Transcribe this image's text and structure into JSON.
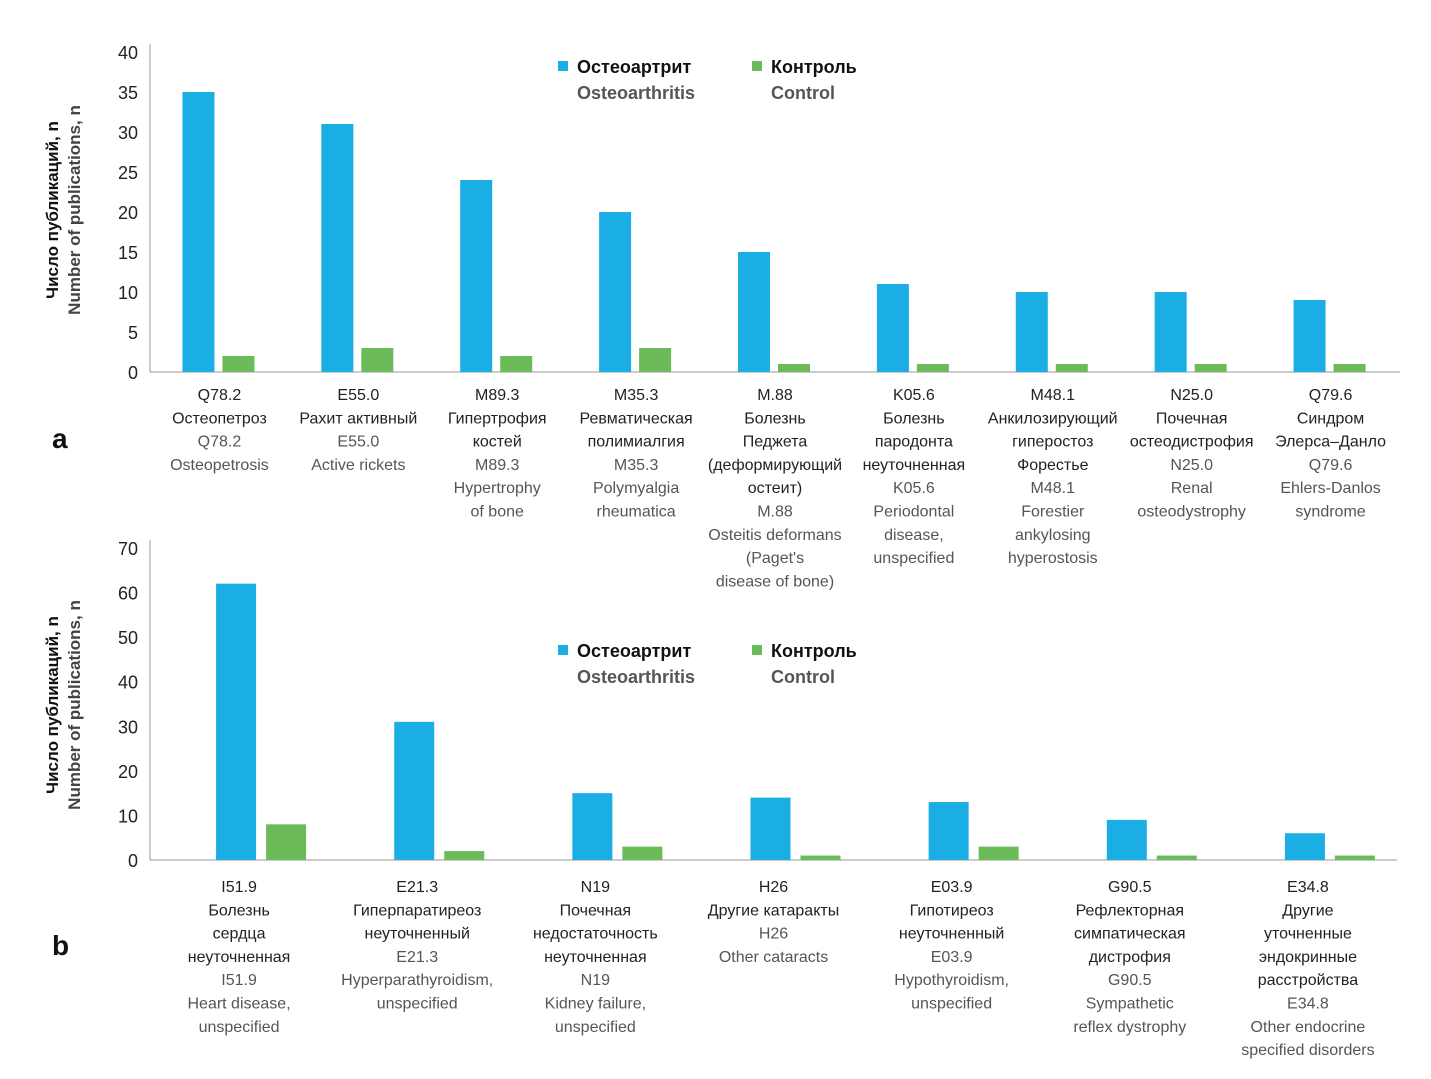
{
  "colors": {
    "osteoarthritis": "#1aaee4",
    "control": "#6cbb5a",
    "axis": "#999999"
  },
  "legend": {
    "osteoarthritis_ru": "Остеоартрит",
    "osteoarthritis_en": "Osteoarthritis",
    "control_ru": "Контроль",
    "control_en": "Control"
  },
  "chart_data": [
    {
      "type": "bar",
      "panel": "a",
      "ylabel_ru": "Число публикаций, n",
      "ylabel_en": "Number of publications, n",
      "ylim": [
        0,
        40
      ],
      "yticks": [
        0,
        5,
        10,
        15,
        20,
        25,
        30,
        35,
        40
      ],
      "legend_position": "top-center",
      "categories": [
        [
          "Q78.2",
          "Остеопетроз",
          "Q78.2",
          "Osteopetrosis"
        ],
        [
          "E55.0",
          "Рахит активный",
          "E55.0",
          "Active rickets"
        ],
        [
          "M89.3",
          "Гипертрофия",
          "костей",
          "M89.3",
          "Hypertrophy",
          "of bone"
        ],
        [
          "M35.3",
          "Ревматическая",
          "полимиалгия",
          "M35.3",
          "Polymyalgia",
          "rheumatica"
        ],
        [
          "M.88",
          "Болезнь",
          "Педжета",
          "(деформирующий",
          "остеит)",
          "M.88",
          "Osteitis deformans",
          "(Paget's",
          "disease of bone)"
        ],
        [
          "K05.6",
          "Болезнь",
          "пародонта",
          "неуточненная",
          "K05.6",
          "Periodontal",
          "disease,",
          "unspecified"
        ],
        [
          "M48.1",
          "Анкилозирующий",
          "гиперостоз",
          "Форестье",
          "M48.1",
          "Forestier",
          "ankylosing",
          "hyperostosis"
        ],
        [
          "N25.0",
          "Почечная",
          "остеодистрофия",
          "N25.0",
          "Renal",
          "osteodystrophy"
        ],
        [
          "Q79.6",
          "Синдром",
          "Элерса–Данло",
          "Q79.6",
          "Ehlers-Danlos",
          "syndrome"
        ]
      ],
      "dark_lines": [
        2,
        2,
        3,
        3,
        5,
        4,
        4,
        3,
        3
      ],
      "series": [
        {
          "name": "Остеоартрит / Osteoarthritis",
          "values": [
            35,
            31,
            24,
            20,
            15,
            11,
            10,
            10,
            9
          ]
        },
        {
          "name": "Контроль / Control",
          "values": [
            2,
            3,
            2,
            3,
            1,
            1,
            1,
            1,
            1
          ]
        }
      ]
    },
    {
      "type": "bar",
      "panel": "b",
      "ylabel_ru": "Число публикаций, n",
      "ylabel_en": "Number of publications, n",
      "ylim": [
        0,
        70
      ],
      "yticks": [
        0,
        10,
        20,
        30,
        40,
        50,
        60,
        70
      ],
      "legend_position": "top-center",
      "categories": [
        [
          "I51.9",
          "Болезнь",
          "сердца",
          "неуточненная",
          "I51.9",
          "Heart disease,",
          "unspecified"
        ],
        [
          "E21.3",
          "Гиперпаратиреоз",
          "неуточненный",
          "E21.3",
          "Hyperparathyroidism,",
          "unspecified"
        ],
        [
          "N19",
          "Почечная",
          "недостаточность",
          "неуточненная",
          "N19",
          "Kidney failure,",
          "unspecified"
        ],
        [
          "H26",
          "Другие катаракты",
          "H26",
          "Other cataracts"
        ],
        [
          "E03.9",
          "Гипотиреоз",
          "неуточненный",
          "E03.9",
          "Hypothyroidism,",
          "unspecified"
        ],
        [
          "G90.5",
          "Рефлекторная",
          "симпатическая",
          "дистрофия",
          "G90.5",
          "Sympathetic",
          "reflex dystrophy"
        ],
        [
          "E34.8",
          "Другие",
          "уточненные",
          "эндокринные",
          "расстройства",
          "E34.8",
          "Other endocrine",
          "specified disorders"
        ]
      ],
      "dark_lines": [
        4,
        3,
        4,
        2,
        3,
        4,
        5
      ],
      "series": [
        {
          "name": "Остеоартрит / Osteoarthritis",
          "values": [
            62,
            31,
            15,
            14,
            13,
            9,
            6
          ]
        },
        {
          "name": "Контроль / Control",
          "values": [
            8,
            2,
            3,
            1,
            3,
            1,
            1
          ]
        }
      ]
    }
  ]
}
